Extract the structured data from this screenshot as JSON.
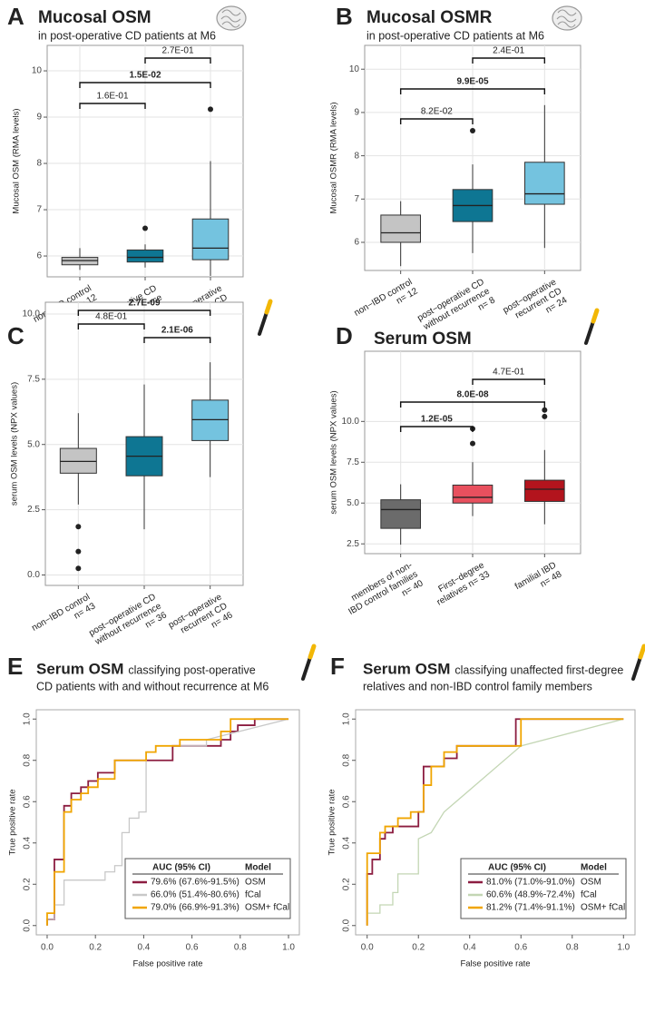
{
  "chart_data": [
    {
      "type": "box",
      "panel": "A",
      "title": "Mucosal OSM",
      "subtitle": "in post-operative CD patients at M6",
      "ylabel": "Mucosal OSM (RMA levels)",
      "categories": [
        [
          "non−IBD control",
          "n= 12"
        ],
        [
          "post−operative CD",
          "without recurrence",
          "n= 8"
        ],
        [
          "post−operative",
          "recurrent CD",
          "n= 24"
        ]
      ],
      "colors": [
        "#c4c4c4",
        "#0e7693",
        "#74c3df"
      ],
      "boxes": [
        {
          "min": 5.7,
          "q1": 5.81,
          "median": 5.9,
          "q3": 5.97,
          "max": 6.17,
          "outliers": []
        },
        {
          "min": 5.75,
          "q1": 5.87,
          "median": 5.97,
          "q3": 6.13,
          "max": 6.25,
          "outliers": [
            6.6
          ]
        },
        {
          "min": 5.57,
          "q1": 5.92,
          "median": 6.17,
          "q3": 6.8,
          "max": 8.05,
          "outliers": [
            9.17
          ]
        }
      ],
      "comparisons": [
        {
          "label": "1.6E-01",
          "bold": false
        },
        {
          "label": "1.5E-02",
          "bold": true
        },
        {
          "label": "2.7E-01",
          "bold": false
        }
      ],
      "ylim": [
        5.55,
        10.55
      ],
      "yticks": [
        6,
        7,
        8,
        9,
        10
      ],
      "grid": true
    },
    {
      "type": "box",
      "panel": "B",
      "title": "Mucosal OSMR",
      "subtitle": "in post-operative CD patients at M6",
      "ylabel": "Mucosal OSMR (RMA levels)",
      "categories": [
        [
          "non−IBD control",
          "n= 12"
        ],
        [
          "post−operative CD",
          "without recurrence",
          "n= 8"
        ],
        [
          "post−operative",
          "recurrent CD",
          "n= 24"
        ]
      ],
      "colors": [
        "#c4c4c4",
        "#0e7693",
        "#74c3df"
      ],
      "boxes": [
        {
          "min": 5.45,
          "q1": 6.0,
          "median": 6.22,
          "q3": 6.63,
          "max": 6.95,
          "outliers": []
        },
        {
          "min": 5.75,
          "q1": 6.48,
          "median": 6.85,
          "q3": 7.22,
          "max": 7.8,
          "outliers": [
            8.58
          ]
        },
        {
          "min": 5.87,
          "q1": 6.88,
          "median": 7.12,
          "q3": 7.85,
          "max": 9.17,
          "outliers": []
        }
      ],
      "comparisons": [
        {
          "label": "8.2E-02",
          "bold": false
        },
        {
          "label": "9.9E-05",
          "bold": true
        },
        {
          "label": "2.4E-01",
          "bold": false
        }
      ],
      "ylim": [
        5.35,
        10.55
      ],
      "yticks": [
        6,
        7,
        8,
        9,
        10
      ],
      "grid": true
    },
    {
      "type": "box",
      "panel": "C",
      "title": "Serum OSM",
      "subtitle": "in post-operative CD patients at M6",
      "ylabel": "serum OSM levels (NPX values)",
      "categories": [
        [
          "non−IBD control",
          "n= 43"
        ],
        [
          "post−operative CD",
          "without recurrence",
          "n= 36"
        ],
        [
          "post−operative",
          "recurrent CD",
          "n= 46"
        ]
      ],
      "colors": [
        "#c4c4c4",
        "#0e7693",
        "#74c3df"
      ],
      "boxes": [
        {
          "min": 2.7,
          "q1": 3.9,
          "median": 4.35,
          "q3": 4.85,
          "max": 6.2,
          "outliers": [
            1.85,
            0.9,
            0.25
          ]
        },
        {
          "min": 1.75,
          "q1": 3.8,
          "median": 4.55,
          "q3": 5.3,
          "max": 7.3,
          "outliers": []
        },
        {
          "min": 3.75,
          "q1": 5.15,
          "median": 5.95,
          "q3": 6.7,
          "max": 8.15,
          "outliers": []
        }
      ],
      "comparisons": [
        {
          "label": "4.8E-01",
          "bold": false
        },
        {
          "label": "2.1E-06",
          "bold": true
        },
        {
          "label": "2.7E-09",
          "bold": true
        }
      ],
      "ylim": [
        -0.4,
        10.45
      ],
      "yticks": [
        {
          "value": 0,
          "label": "0.0"
        },
        {
          "value": 2.5,
          "label": "2.5"
        },
        {
          "value": 5,
          "label": "5.0"
        },
        {
          "value": 7.5,
          "label": "7.5"
        },
        {
          "value": 10,
          "label": "10.0"
        }
      ],
      "grid": true
    },
    {
      "type": "box",
      "panel": "D",
      "title": "Serum OSM",
      "subtitle": "IBD families incl. unaffected FDRs",
      "ylabel": "serum OSM levels (NPX values)",
      "categories": [
        [
          "members of non-",
          "IBD control families",
          "n= 40"
        ],
        [
          "First−degree",
          "relatives   n= 33"
        ],
        [
          "familial IBD",
          "n= 48"
        ]
      ],
      "colors": [
        "#6b6b6b",
        "#e8505e",
        "#b3141d"
      ],
      "boxes": [
        {
          "min": 2.45,
          "q1": 3.45,
          "median": 4.6,
          "q3": 5.2,
          "max": 6.15,
          "outliers": []
        },
        {
          "min": 4.2,
          "q1": 5.0,
          "median": 5.35,
          "q3": 6.1,
          "max": 7.5,
          "outliers": [
            8.65,
            9.55
          ]
        },
        {
          "min": 3.7,
          "q1": 5.1,
          "median": 5.85,
          "q3": 6.4,
          "max": 8.25,
          "outliers": [
            10.3,
            10.7
          ]
        }
      ],
      "comparisons": [
        {
          "label": "1.2E-05",
          "bold": true
        },
        {
          "label": "8.0E-08",
          "bold": true
        },
        {
          "label": "4.7E-01",
          "bold": false
        }
      ],
      "ylim": [
        1.9,
        14.3
      ],
      "yticks": [
        {
          "value": 2.5,
          "label": "2.5"
        },
        {
          "value": 5,
          "label": "5.0"
        },
        {
          "value": 7.5,
          "label": "7.5"
        },
        {
          "value": 10,
          "label": "10.0"
        }
      ],
      "grid": true
    },
    {
      "type": "roc",
      "panel": "E",
      "title": "Serum OSM",
      "subtitle": [
        "classifying post-operative",
        "CD patients with and without recurrence at M6"
      ],
      "xlabel": "False positive rate",
      "ylabel": "True positive rate",
      "xlim": [
        -0.045,
        1.045
      ],
      "ylim": [
        -0.045,
        1.045
      ],
      "xticks": [
        {
          "value": 0,
          "label": "0.0"
        },
        {
          "value": 0.2,
          "label": "0.2"
        },
        {
          "value": 0.4,
          "label": "0.4"
        },
        {
          "value": 0.6,
          "label": "0.6"
        },
        {
          "value": 0.8,
          "label": "0.8"
        },
        {
          "value": 1,
          "label": "1.0"
        }
      ],
      "yticks": [
        {
          "value": 0,
          "label": "0.0"
        },
        {
          "value": 0.2,
          "label": "0.2"
        },
        {
          "value": 0.4,
          "label": "0.4"
        },
        {
          "value": 0.6,
          "label": "0.6"
        },
        {
          "value": 0.8,
          "label": "0.8"
        },
        {
          "value": 1,
          "label": "1.0"
        }
      ],
      "grid": false,
      "legend": "bottom-right",
      "legend_headers": [
        "AUC (95% CI)",
        "Model"
      ],
      "series": [
        {
          "name": "OSM",
          "auc": "79.6% (67.6%-91.5%)",
          "color": "#8c1d40",
          "x": [
            0,
            0,
            0.03,
            0.03,
            0.07,
            0.07,
            0.1,
            0.1,
            0.14,
            0.14,
            0.17,
            0.17,
            0.21,
            0.21,
            0.28,
            0.28,
            0.52,
            0.52,
            0.72,
            0.72,
            0.76,
            0.76,
            0.79,
            0.79,
            0.86,
            0.86,
            1
          ],
          "y": [
            0,
            0.03,
            0.03,
            0.32,
            0.32,
            0.58,
            0.58,
            0.64,
            0.64,
            0.67,
            0.67,
            0.7,
            0.7,
            0.74,
            0.74,
            0.8,
            0.8,
            0.87,
            0.87,
            0.9,
            0.9,
            0.94,
            0.94,
            0.97,
            0.97,
            1,
            1
          ]
        },
        {
          "name": "fCal",
          "auc": "66.0% (51.4%-80.6%)",
          "color": "#c8c8c8",
          "x": [
            0,
            0,
            0.03,
            0.03,
            0.07,
            0.07,
            0.24,
            0.24,
            0.28,
            0.28,
            0.31,
            0.31,
            0.34,
            0.34,
            0.38,
            0.38,
            0.41,
            0.41,
            0.45,
            0.45,
            0.66,
            0.66,
            1
          ],
          "y": [
            0,
            0.03,
            0.03,
            0.1,
            0.1,
            0.22,
            0.22,
            0.26,
            0.26,
            0.29,
            0.29,
            0.45,
            0.45,
            0.52,
            0.52,
            0.55,
            0.55,
            0.84,
            0.84,
            0.87,
            0.87,
            0.9,
            1
          ]
        },
        {
          "name": "OSM+ fCal",
          "auc": "79.0% (66.9%-91.3%)",
          "color": "#f0a500",
          "x": [
            0,
            0,
            0.03,
            0.03,
            0.07,
            0.07,
            0.1,
            0.1,
            0.14,
            0.14,
            0.17,
            0.17,
            0.21,
            0.21,
            0.28,
            0.28,
            0.41,
            0.41,
            0.45,
            0.45,
            0.55,
            0.55,
            0.72,
            0.72,
            0.76,
            0.76,
            1
          ],
          "y": [
            0,
            0.06,
            0.06,
            0.26,
            0.26,
            0.55,
            0.55,
            0.61,
            0.61,
            0.64,
            0.64,
            0.67,
            0.67,
            0.71,
            0.71,
            0.8,
            0.8,
            0.84,
            0.84,
            0.87,
            0.87,
            0.9,
            0.9,
            0.94,
            0.94,
            1,
            1
          ]
        }
      ]
    },
    {
      "type": "roc",
      "panel": "F",
      "title": "Serum OSM",
      "subtitle": [
        "classifying unaffected first-degree",
        "relatives and non-IBD control family members"
      ],
      "xlabel": "False positive rate",
      "ylabel": "True positive rate",
      "xlim": [
        -0.045,
        1.045
      ],
      "ylim": [
        -0.045,
        1.045
      ],
      "xticks": [
        {
          "value": 0,
          "label": "0.0"
        },
        {
          "value": 0.2,
          "label": "0.2"
        },
        {
          "value": 0.4,
          "label": "0.4"
        },
        {
          "value": 0.6,
          "label": "0.6"
        },
        {
          "value": 0.8,
          "label": "0.8"
        },
        {
          "value": 1,
          "label": "1.0"
        }
      ],
      "yticks": [
        {
          "value": 0,
          "label": "0.0"
        },
        {
          "value": 0.2,
          "label": "0.2"
        },
        {
          "value": 0.4,
          "label": "0.4"
        },
        {
          "value": 0.6,
          "label": "0.6"
        },
        {
          "value": 0.8,
          "label": "0.8"
        },
        {
          "value": 1,
          "label": "1.0"
        }
      ],
      "grid": false,
      "legend": "bottom-right",
      "legend_headers": [
        "AUC (95% CI)",
        "Model"
      ],
      "series": [
        {
          "name": "OSM",
          "auc": "81.0% (71.0%-91.0%)",
          "color": "#8c1d40",
          "x": [
            0,
            0,
            0.02,
            0.02,
            0.05,
            0.05,
            0.07,
            0.07,
            0.1,
            0.1,
            0.2,
            0.2,
            0.22,
            0.22,
            0.3,
            0.3,
            0.35,
            0.35,
            0.58,
            0.58,
            1
          ],
          "y": [
            0,
            0.25,
            0.25,
            0.32,
            0.32,
            0.42,
            0.42,
            0.45,
            0.45,
            0.48,
            0.48,
            0.55,
            0.55,
            0.77,
            0.77,
            0.81,
            0.81,
            0.87,
            0.87,
            1,
            1
          ]
        },
        {
          "name": "fCal",
          "auc": "60.6% (48.9%-72.4%)",
          "color": "#c3d6b4",
          "x": [
            0,
            0,
            0.05,
            0.05,
            0.1,
            0.1,
            0.12,
            0.12,
            0.2,
            0.2,
            0.25,
            0.3,
            0.6,
            1
          ],
          "y": [
            0,
            0.06,
            0.06,
            0.1,
            0.1,
            0.16,
            0.16,
            0.25,
            0.25,
            0.42,
            0.45,
            0.55,
            0.87,
            1
          ]
        },
        {
          "name": "OSM+ fCal",
          "auc": "81.2% (71.4%-91.1%)",
          "color": "#f0a500",
          "x": [
            0,
            0,
            0.05,
            0.05,
            0.07,
            0.07,
            0.12,
            0.12,
            0.17,
            0.17,
            0.22,
            0.22,
            0.25,
            0.25,
            0.3,
            0.3,
            0.35,
            0.35,
            0.6,
            0.6,
            1
          ],
          "y": [
            0,
            0.35,
            0.35,
            0.45,
            0.45,
            0.48,
            0.48,
            0.52,
            0.52,
            0.55,
            0.55,
            0.68,
            0.68,
            0.77,
            0.77,
            0.84,
            0.84,
            0.87,
            0.87,
            1,
            1
          ]
        }
      ]
    }
  ]
}
